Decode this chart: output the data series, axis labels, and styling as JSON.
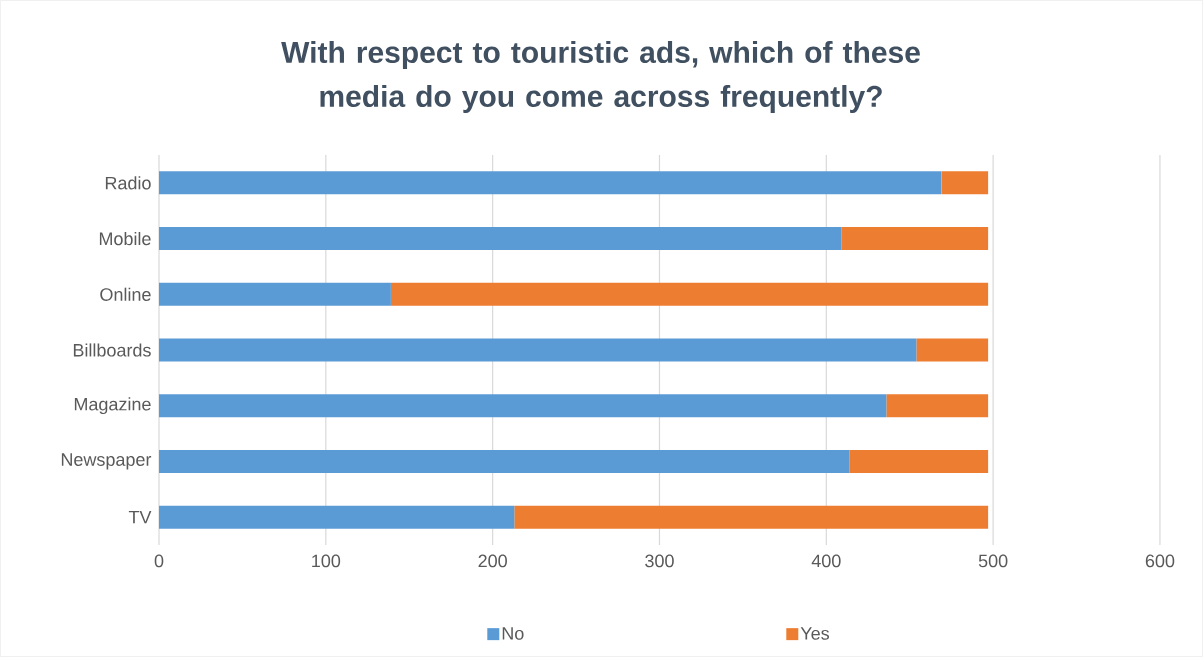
{
  "chart_data": {
    "type": "bar",
    "orientation": "horizontal",
    "stacked": true,
    "title": "With respect to touristic ads, which of these media do you come across frequently?",
    "categories": [
      "Radio",
      "Mobile",
      "Online",
      "Billboards",
      "Magazine",
      "Newspaper",
      "TV"
    ],
    "series": [
      {
        "name": "No",
        "color": "#5b9bd5",
        "values": [
          469,
          409,
          139,
          454,
          436,
          414,
          213
        ]
      },
      {
        "name": "Yes",
        "color": "#ed7d31",
        "values": [
          28,
          88,
          358,
          43,
          61,
          83,
          284
        ]
      }
    ],
    "xlim": [
      0,
      600
    ],
    "xticks": [
      0,
      100,
      200,
      300,
      400,
      500,
      600
    ],
    "grid": "x",
    "legend": "bottom"
  }
}
